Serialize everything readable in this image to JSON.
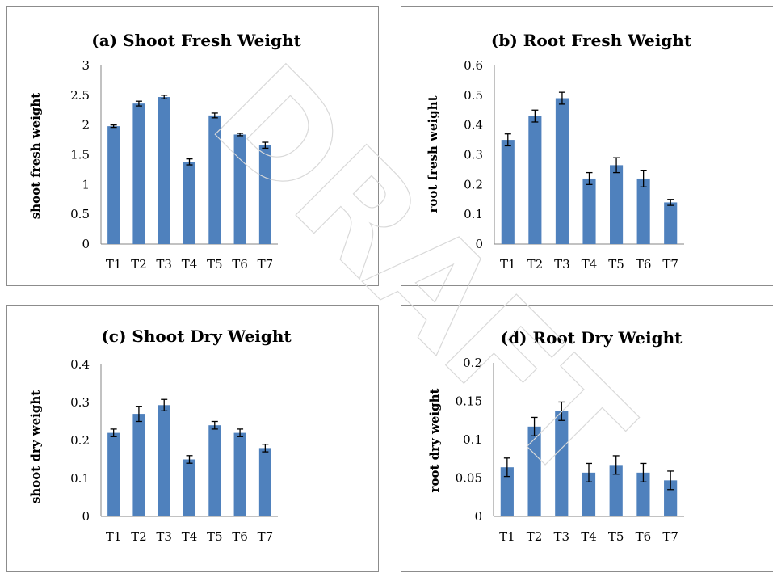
{
  "watermark": "DRAFT",
  "chart_data": [
    {
      "type": "bar",
      "title": "(a) Shoot Fresh Weight",
      "ylabel": "shoot fresh weight",
      "xlabel": "",
      "categories": [
        "T1",
        "T2",
        "T3",
        "T4",
        "T5",
        "T6",
        "T7"
      ],
      "values": [
        1.98,
        2.36,
        2.47,
        1.38,
        2.16,
        1.84,
        1.66
      ],
      "errors": [
        0.02,
        0.04,
        0.03,
        0.05,
        0.04,
        0.02,
        0.05
      ],
      "ylim": [
        0,
        3
      ],
      "yticks": [
        "0",
        "0.5",
        "1",
        "1.5",
        "2",
        "2.5",
        "3"
      ],
      "bar_color": "#4f81bd"
    },
    {
      "type": "bar",
      "title": "(b) Root Fresh Weight",
      "ylabel": "root fresh weight",
      "xlabel": "",
      "categories": [
        "T1",
        "T2",
        "T3",
        "T4",
        "T5",
        "T6",
        "T7"
      ],
      "values": [
        0.35,
        0.43,
        0.49,
        0.22,
        0.265,
        0.22,
        0.14
      ],
      "errors": [
        0.02,
        0.02,
        0.02,
        0.02,
        0.025,
        0.028,
        0.01
      ],
      "ylim": [
        0,
        0.6
      ],
      "yticks": [
        "0",
        "0.1",
        "0.2",
        "0.3",
        "0.4",
        "0.5",
        "0.6"
      ],
      "bar_color": "#4f81bd"
    },
    {
      "type": "bar",
      "title": "(c) Shoot Dry Weight",
      "ylabel": "shoot dry weight",
      "xlabel": "",
      "categories": [
        "T1",
        "T2",
        "T3",
        "T4",
        "T5",
        "T6",
        "T7"
      ],
      "values": [
        0.22,
        0.27,
        0.293,
        0.15,
        0.24,
        0.22,
        0.18
      ],
      "errors": [
        0.01,
        0.02,
        0.015,
        0.01,
        0.01,
        0.01,
        0.01
      ],
      "ylim": [
        0,
        0.4
      ],
      "yticks": [
        "0",
        "0.1",
        "0.2",
        "0.3",
        "0.4"
      ],
      "bar_color": "#4f81bd"
    },
    {
      "type": "bar",
      "title": "(d) Root Dry Weight",
      "ylabel": "root dry weight",
      "xlabel": "",
      "categories": [
        "T1",
        "T2",
        "T3",
        "T4",
        "T5",
        "T6",
        "T7"
      ],
      "values": [
        0.064,
        0.117,
        0.137,
        0.057,
        0.067,
        0.057,
        0.047
      ],
      "errors": [
        0.012,
        0.012,
        0.012,
        0.012,
        0.012,
        0.012,
        0.012
      ],
      "ylim": [
        0,
        0.2
      ],
      "yticks": [
        "0",
        "0.05",
        "0.1",
        "0.15",
        "0.2"
      ],
      "bar_color": "#4f81bd"
    }
  ]
}
